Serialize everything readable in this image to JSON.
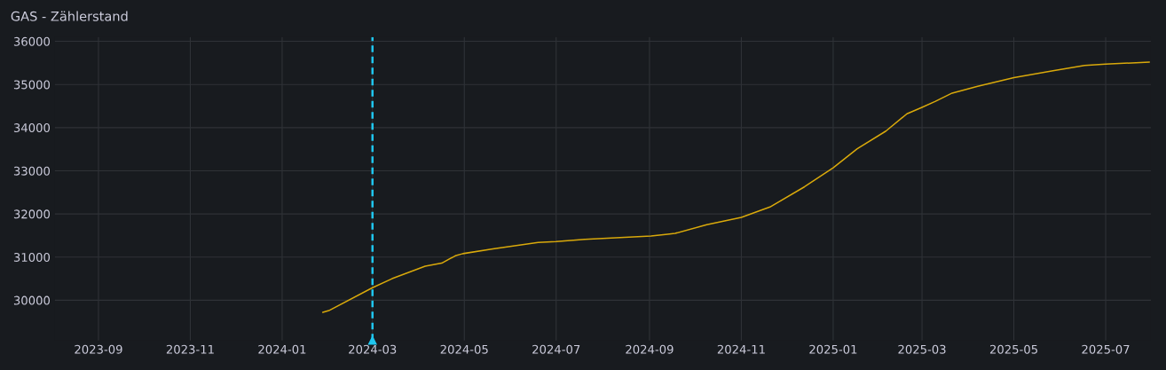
{
  "chart_data": {
    "type": "line",
    "title": "GAS - Zählerstand",
    "x": [
      "2024-01-28",
      "2024-02-01",
      "2024-03-01",
      "2024-03-14",
      "2024-04-05",
      "2024-04-16",
      "2024-04-25",
      "2024-04-30",
      "2024-05-20",
      "2024-06-19",
      "2024-07-01",
      "2024-07-20",
      "2024-09-02",
      "2024-09-13",
      "2024-09-18",
      "2024-10-09",
      "2024-11-01",
      "2024-11-20",
      "2024-12-13",
      "2025-01-01",
      "2025-01-17",
      "2025-02-05",
      "2025-02-19",
      "2025-03-01",
      "2025-03-10",
      "2025-03-21",
      "2025-04-07",
      "2025-05-01",
      "2025-05-27",
      "2025-06-17",
      "2025-07-01",
      "2025-07-30"
    ],
    "series": [
      {
        "color": "#d9a90b",
        "values": [
          29720,
          29760,
          30290,
          30500,
          30790,
          30860,
          31030,
          31080,
          31190,
          31340,
          31360,
          31410,
          31490,
          31530,
          31550,
          31750,
          31920,
          32160,
          32630,
          33070,
          33510,
          33920,
          34320,
          34470,
          34610,
          34800,
          34960,
          35160,
          35320,
          35440,
          35470,
          35520
        ]
      }
    ],
    "xlim": [
      "2023-08-03",
      "2025-07-31"
    ],
    "xticks": [
      {
        "value": "2023-09-01",
        "label": "2023-09"
      },
      {
        "value": "2023-11-01",
        "label": "2023-11"
      },
      {
        "value": "2024-01-01",
        "label": "2024-01"
      },
      {
        "value": "2024-03-01",
        "label": "2024-03"
      },
      {
        "value": "2024-05-01",
        "label": "2024-05"
      },
      {
        "value": "2024-07-01",
        "label": "2024-07"
      },
      {
        "value": "2024-09-01",
        "label": "2024-09"
      },
      {
        "value": "2024-11-01",
        "label": "2024-11"
      },
      {
        "value": "2025-01-01",
        "label": "2025-01"
      },
      {
        "value": "2025-03-01",
        "label": "2025-03"
      },
      {
        "value": "2025-05-01",
        "label": "2025-05"
      },
      {
        "value": "2025-07-01",
        "label": "2025-07"
      }
    ],
    "ylim": [
      29070,
      36100
    ],
    "yticks": [
      30000,
      31000,
      32000,
      33000,
      34000,
      35000,
      36000
    ],
    "ref_lines": [
      {
        "axis": "x",
        "value": "2024-03-01",
        "color": "#1fc6ef",
        "line_style": "dashed"
      }
    ],
    "grid": true,
    "line_style": "solid",
    "marker": "none"
  }
}
